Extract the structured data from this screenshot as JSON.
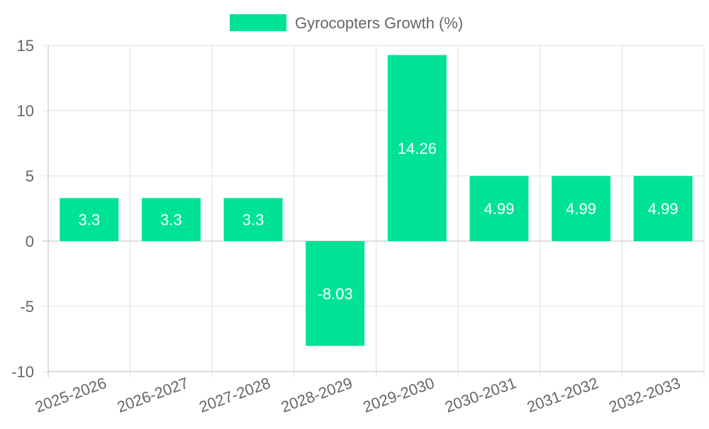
{
  "chart_data": {
    "type": "bar",
    "title": "",
    "xlabel": "",
    "ylabel": "",
    "categories": [
      "2025-2026",
      "2026-2027",
      "2027-2028",
      "2028-2029",
      "2029-2030",
      "2030-2031",
      "2031-2032",
      "2032-2033"
    ],
    "series": [
      {
        "name": "Gyrocopters Growth (%)",
        "color": "#00e396",
        "values": [
          3.3,
          3.3,
          3.3,
          -8.03,
          14.26,
          4.99,
          4.99,
          4.99
        ]
      }
    ],
    "ylim": [
      -10,
      15
    ],
    "yticks": [
      15,
      10,
      5,
      0,
      -5,
      -10
    ],
    "grid": true,
    "legend_position": "top-center",
    "colors": {
      "grid": "#e0e0e0",
      "axis": "#bdbdbd",
      "tick_text": "#666666",
      "data_label": "#ffffff"
    }
  }
}
